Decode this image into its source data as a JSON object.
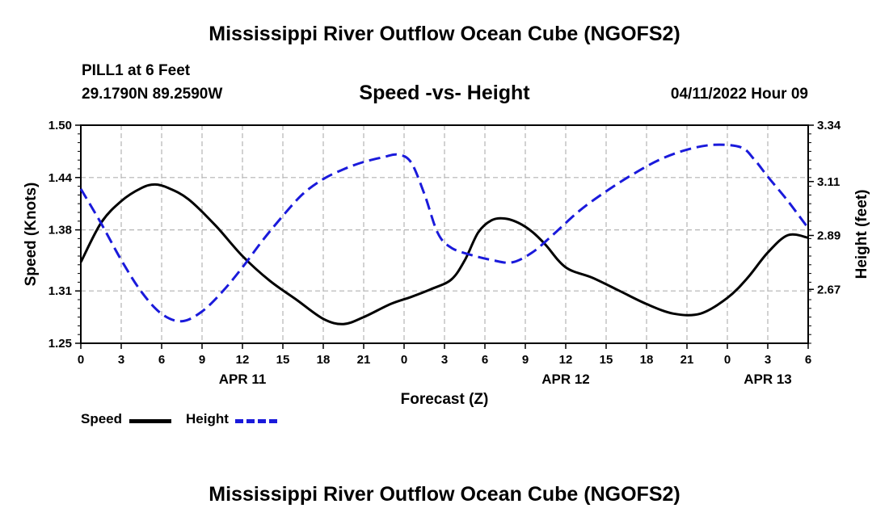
{
  "header": {
    "title": "Mississippi River Outflow Ocean Cube (NGOFS2)",
    "station": "PILL1 at 6 Feet",
    "coords": "29.1790N  89.2590W",
    "subtitle": "Speed -vs- Height",
    "timestamp": "04/11/2022 Hour 09"
  },
  "footer": {
    "title": "Mississippi River Outflow Ocean Cube (NGOFS2)"
  },
  "legend": {
    "speed_label": "Speed",
    "height_label": "Height"
  },
  "colors": {
    "speed": "#000000",
    "height": "#1a1adb",
    "grid": "#b4b4b4"
  },
  "chart_data": {
    "type": "line",
    "xlabel": "Forecast (Z)",
    "ylabel": "Speed (Knots)",
    "y2label": "Height (feet)",
    "xlim": [
      0,
      54
    ],
    "ylim": [
      1.25,
      1.5
    ],
    "y2lim": [
      2.45,
      3.34
    ],
    "x_ticks": [
      0,
      3,
      6,
      9,
      12,
      15,
      18,
      21,
      24,
      27,
      30,
      33,
      36,
      39,
      42,
      45,
      48,
      51,
      54
    ],
    "x_tick_labels": [
      "0",
      "3",
      "6",
      "9",
      "12",
      "15",
      "18",
      "21",
      "0",
      "3",
      "6",
      "9",
      "12",
      "15",
      "18",
      "21",
      "0",
      "3",
      "6"
    ],
    "date_labels": [
      {
        "x": 12,
        "label": "APR 11"
      },
      {
        "x": 36,
        "label": "APR 12"
      },
      {
        "x": 51,
        "label": "APR 13"
      }
    ],
    "y_ticks": [
      1.25,
      1.31,
      1.38,
      1.44,
      1.5
    ],
    "y_tick_labels": [
      "1.25",
      "1.31",
      "1.38",
      "1.44",
      "1.50"
    ],
    "y2_ticks": [
      2.67,
      2.89,
      3.11,
      3.34
    ],
    "y2_tick_labels": [
      "2.67",
      "2.89",
      "3.11",
      "3.34"
    ],
    "grid": true,
    "series": [
      {
        "name": "Speed",
        "axis": "left",
        "x": [
          0,
          1.5,
          3,
          4.5,
          5.5,
          6.5,
          8,
          10,
          12,
          14,
          16,
          18,
          19.5,
          21,
          23,
          24.5,
          26,
          27.5,
          28.5,
          29.5,
          30.5,
          31.5,
          32.5,
          33.5,
          34.5,
          36,
          38,
          40,
          42,
          44,
          46,
          48,
          49.5,
          51,
          52.5,
          54
        ],
        "values": [
          1.343,
          1.388,
          1.413,
          1.428,
          1.432,
          1.428,
          1.415,
          1.385,
          1.35,
          1.322,
          1.3,
          1.278,
          1.272,
          1.28,
          1.295,
          1.303,
          1.312,
          1.323,
          1.345,
          1.377,
          1.391,
          1.393,
          1.388,
          1.378,
          1.363,
          1.337,
          1.325,
          1.31,
          1.295,
          1.284,
          1.284,
          1.302,
          1.325,
          1.354,
          1.374,
          1.371
        ]
      },
      {
        "name": "Height",
        "axis": "right",
        "x": [
          0,
          1.5,
          3,
          4.5,
          6,
          7.5,
          9,
          10.5,
          12,
          13.5,
          15,
          16.5,
          18,
          19.5,
          21,
          22.5,
          23.5,
          24.5,
          25.5,
          26.5,
          27.5,
          29,
          30.5,
          32,
          33.5,
          35,
          37,
          39,
          41,
          43,
          45,
          47,
          49,
          50,
          51,
          52.5,
          54
        ],
        "values": [
          3.08,
          2.94,
          2.79,
          2.66,
          2.57,
          2.54,
          2.58,
          2.66,
          2.76,
          2.87,
          2.97,
          3.06,
          3.12,
          3.16,
          3.19,
          3.21,
          3.22,
          3.19,
          3.06,
          2.9,
          2.84,
          2.81,
          2.79,
          2.78,
          2.82,
          2.89,
          2.99,
          3.07,
          3.14,
          3.2,
          3.24,
          3.26,
          3.25,
          3.2,
          3.13,
          3.03,
          2.92
        ]
      }
    ]
  }
}
